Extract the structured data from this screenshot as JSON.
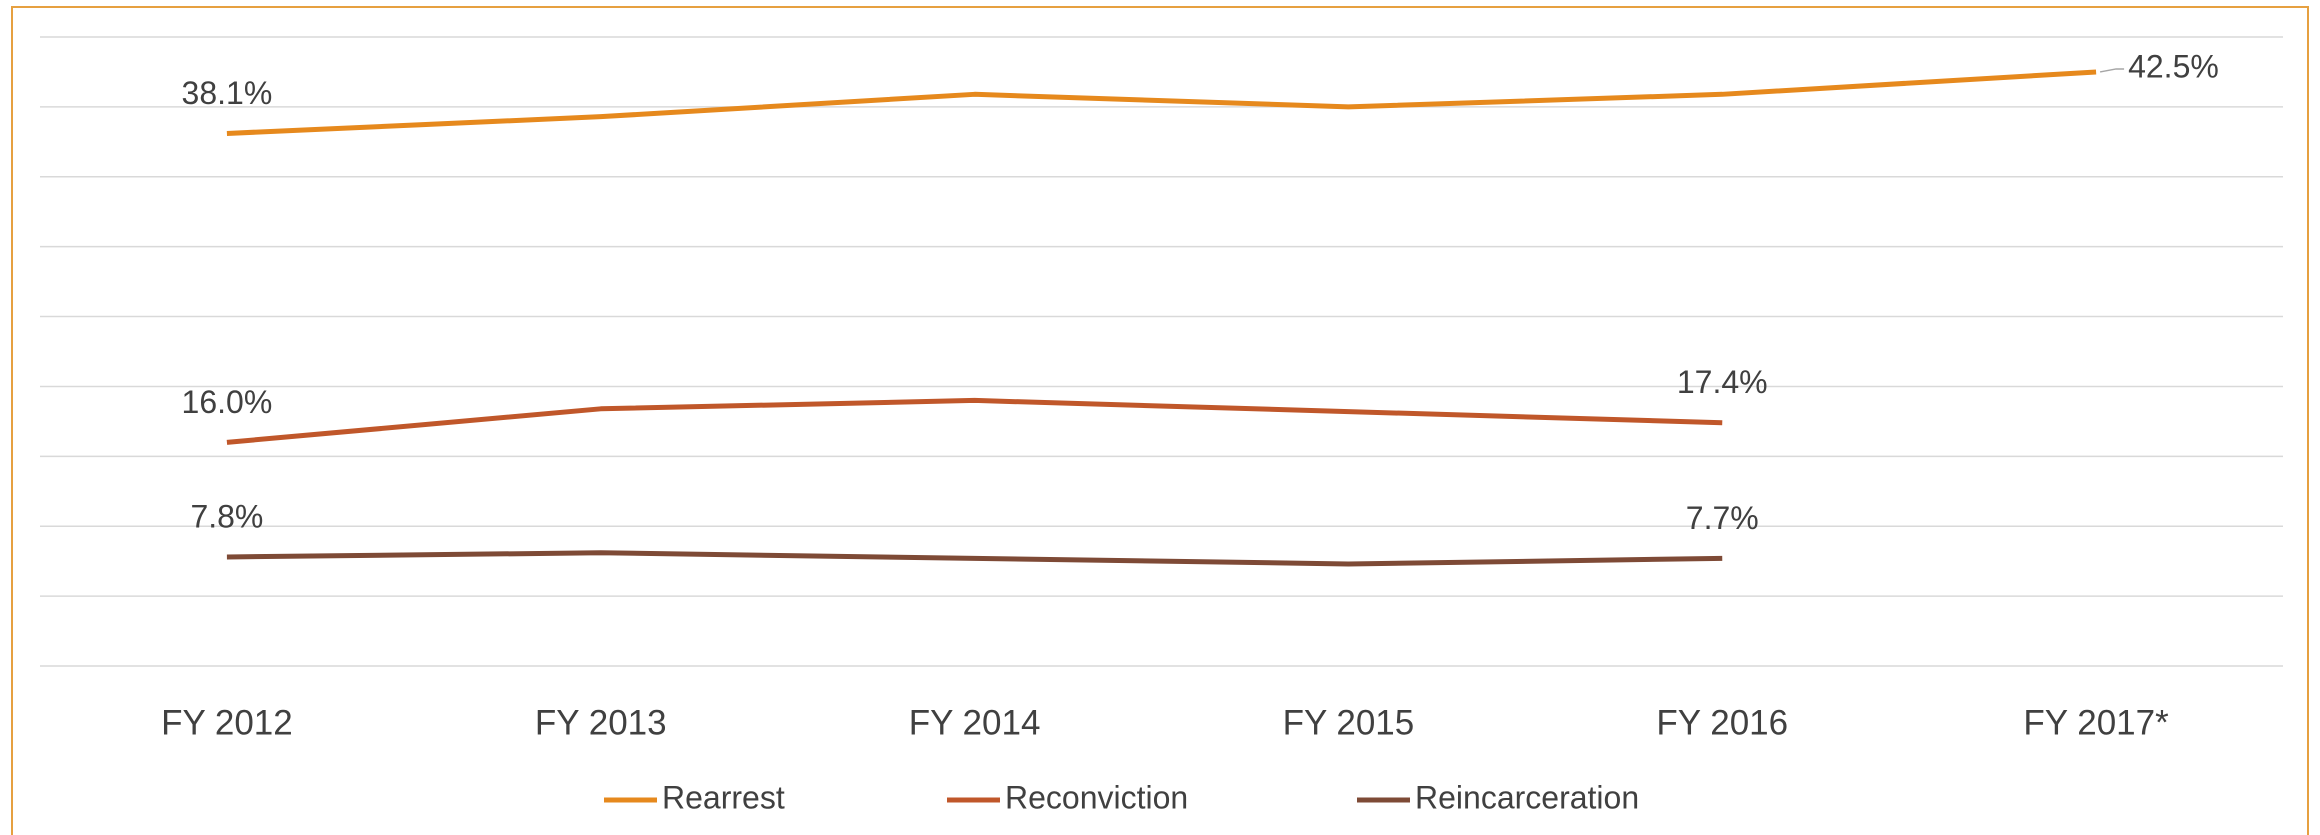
{
  "chart_data": {
    "type": "line",
    "categories": [
      "FY 2012",
      "FY 2013",
      "FY 2014",
      "FY 2015",
      "FY 2016",
      "FY 2017*"
    ],
    "series": [
      {
        "name": "Rearrest",
        "color": "#e6891d",
        "values": [
          38.1,
          39.3,
          40.9,
          40.0,
          40.9,
          42.5
        ],
        "value_labels": [
          "38.1%",
          null,
          null,
          null,
          null,
          "42.5%"
        ]
      },
      {
        "name": "Reconviction",
        "color": "#c0572a",
        "values": [
          16.0,
          18.4,
          19.0,
          18.2,
          17.4,
          null
        ],
        "value_labels": [
          "16.0%",
          null,
          null,
          null,
          "17.4%",
          null
        ]
      },
      {
        "name": "Reincarceration",
        "color": "#7e4a36",
        "values": [
          7.8,
          8.1,
          7.7,
          7.3,
          7.7,
          null
        ],
        "value_labels": [
          "7.8%",
          null,
          null,
          null,
          "7.7%",
          null
        ]
      }
    ],
    "ylim": [
      0,
      45
    ],
    "yticks": [
      0,
      5,
      10,
      15,
      20,
      25,
      30,
      35,
      40,
      45
    ],
    "grid": true,
    "legend": "bottom"
  }
}
